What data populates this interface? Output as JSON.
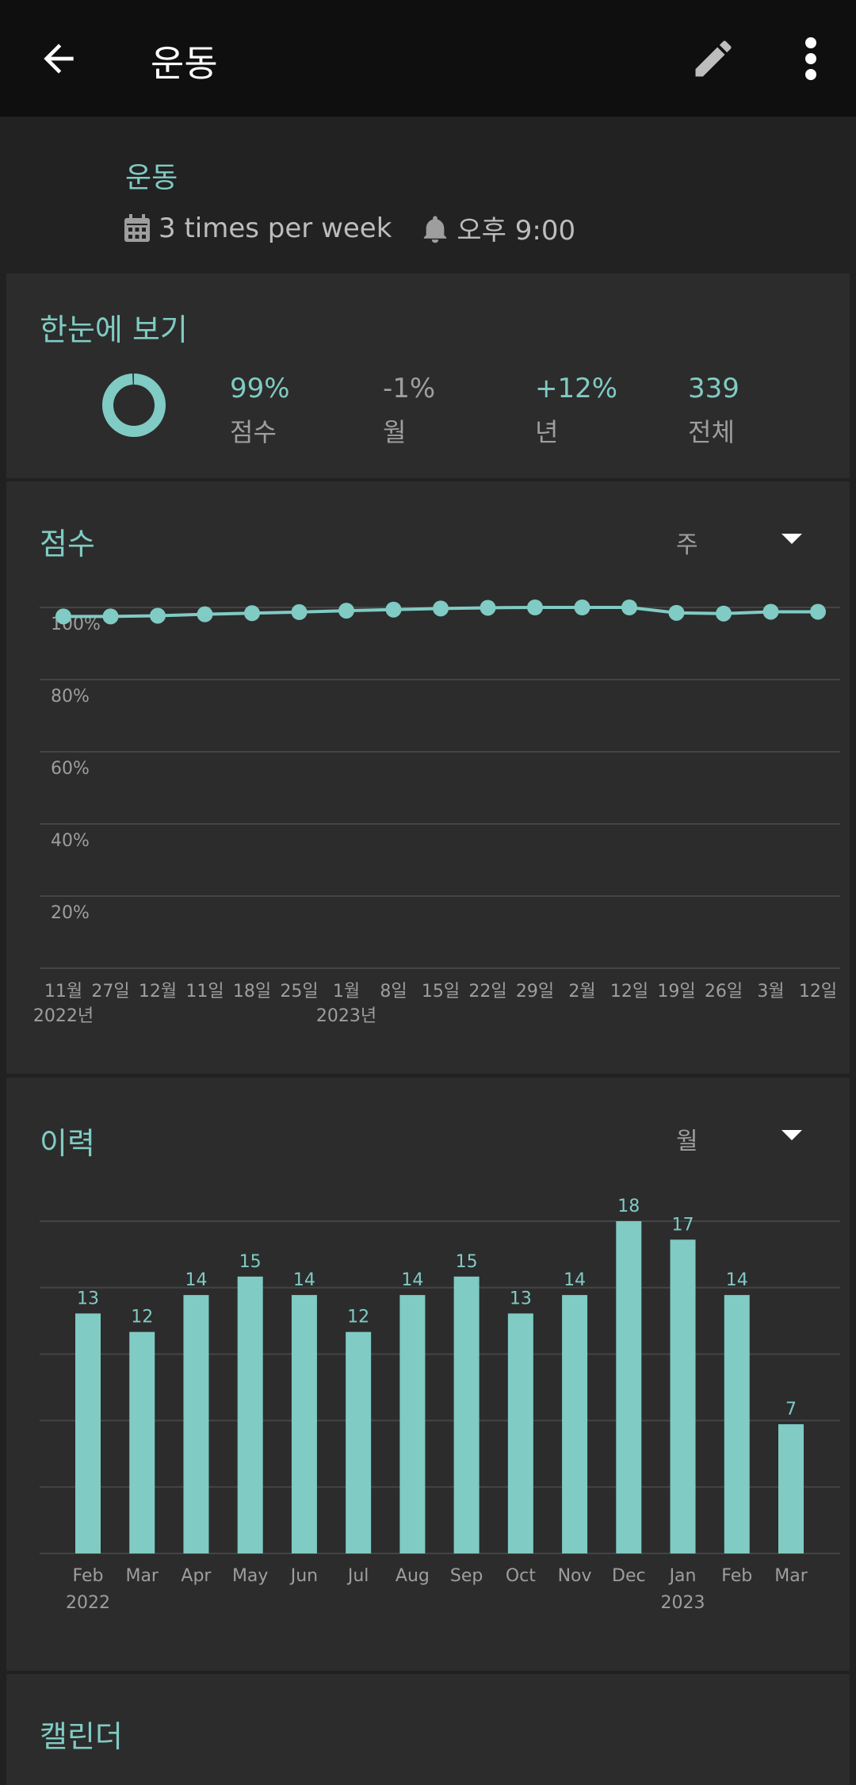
{
  "appbar": {
    "title": "운동",
    "back_icon": "arrow-left-icon",
    "edit_icon": "pencil-icon",
    "more_icon": "more-vert-icon"
  },
  "habit": {
    "name": "운동",
    "frequency": "3 times per week",
    "reminder": "오후 9:00",
    "frequency_icon": "calendar-icon",
    "reminder_icon": "bell-icon"
  },
  "overview": {
    "title": "한눈에 보기",
    "ring_value": 0.99,
    "stats": [
      {
        "value": "99%",
        "label": "점수"
      },
      {
        "value": "-1%",
        "label": "월"
      },
      {
        "value": "+12%",
        "label": "년"
      },
      {
        "value": "339",
        "label": "전체"
      }
    ]
  },
  "score": {
    "title": "점수",
    "period": "주"
  },
  "history": {
    "title": "이력",
    "period": "월"
  },
  "calendar": {
    "title": "캘린더"
  },
  "colors": {
    "accent": "#80cbc4",
    "appbar": "#0f0f0f",
    "card": "#2c2c2c",
    "background": "#212121"
  },
  "chart_data": [
    {
      "type": "line",
      "title": "점수",
      "y_ticks": [
        "100%",
        "80%",
        "60%",
        "40%",
        "20%"
      ],
      "ylim": [
        0,
        100
      ],
      "x_labels": [
        "11월",
        "27일",
        "12월",
        "11일",
        "18일",
        "25일",
        "1월",
        "8일",
        "15일",
        "22일",
        "29일",
        "2월",
        "12일",
        "19일",
        "26일",
        "3월",
        "12일"
      ],
      "year_labels": [
        {
          "text": "2022년",
          "at": 0
        },
        {
          "text": "2023년",
          "at": 6
        }
      ],
      "values": [
        97.5,
        97.5,
        97.7,
        98.1,
        98.4,
        98.7,
        99.1,
        99.4,
        99.7,
        99.9,
        100,
        100,
        100,
        98.5,
        98.3,
        98.8,
        98.8
      ]
    },
    {
      "type": "bar",
      "title": "이력",
      "categories": [
        "Feb",
        "Mar",
        "Apr",
        "May",
        "Jun",
        "Jul",
        "Aug",
        "Sep",
        "Oct",
        "Nov",
        "Dec",
        "Jan",
        "Feb",
        "Mar"
      ],
      "year_labels": [
        {
          "text": "2022",
          "at": 0
        },
        {
          "text": "2023",
          "at": 11
        }
      ],
      "values": [
        13,
        12,
        14,
        15,
        14,
        12,
        14,
        15,
        13,
        14,
        18,
        17,
        14,
        7
      ],
      "ylim": [
        0,
        18
      ]
    }
  ]
}
